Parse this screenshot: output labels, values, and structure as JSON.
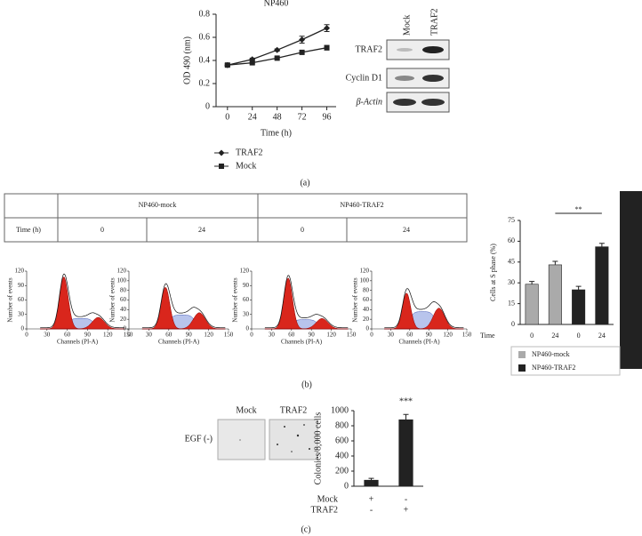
{
  "chart_data": [
    {
      "type": "line",
      "title": "NP460",
      "xlabel": "Time (h)",
      "ylabel": "OD 490 (nm)",
      "x": [
        0,
        24,
        48,
        72,
        96
      ],
      "xlim": [
        -11,
        105
      ],
      "xticks": [
        0,
        24,
        48,
        72,
        96
      ],
      "ylim": [
        0,
        0.8
      ],
      "yticks": [
        0,
        0.2,
        0.4,
        0.6,
        0.8
      ],
      "series": [
        {
          "name": "TRAF2",
          "color": "#222222",
          "marker": "diamond",
          "values": [
            0.36,
            0.41,
            0.49,
            0.58,
            0.68
          ],
          "errors": [
            0.01,
            0.01,
            0.01,
            0.03,
            0.03
          ]
        },
        {
          "name": "Mock",
          "color": "#222222",
          "marker": "square",
          "values": [
            0.36,
            0.38,
            0.42,
            0.47,
            0.51
          ],
          "errors": [
            0.01,
            0.01,
            0.01,
            0.01,
            0.02
          ]
        }
      ]
    },
    {
      "type": "bar",
      "ylabel": "Cells at S phase (%)",
      "x_title": "Time",
      "annotation": "**",
      "categories": [
        "0",
        "24",
        "0",
        "24"
      ],
      "ylim": [
        0,
        75
      ],
      "yticks": [
        0,
        15,
        30,
        45,
        60,
        75
      ],
      "series": [
        {
          "name": "NP460-mock",
          "color": "#aaaaaa",
          "values": [
            29,
            43,
            null,
            null
          ],
          "errors": [
            2,
            2.5,
            null,
            null
          ]
        },
        {
          "name": "NP460-TRAF2",
          "color": "#222222",
          "values": [
            null,
            null,
            25,
            56
          ],
          "errors": [
            null,
            null,
            2.5,
            2.5
          ]
        }
      ]
    },
    {
      "type": "bar",
      "ylabel": "Colonies/8,000 cells",
      "annotation": "***",
      "categories": [
        null,
        null
      ],
      "ylim": [
        0,
        1000
      ],
      "yticks": [
        0,
        200,
        400,
        600,
        800,
        1000
      ],
      "series": [
        {
          "color": "#222222",
          "values": [
            80,
            880
          ],
          "errors": [
            25,
            70
          ]
        }
      ],
      "condition_rows": [
        {
          "name": "Mock",
          "marks": [
            "+",
            "-"
          ]
        },
        {
          "name": "TRAF2",
          "marks": [
            "-",
            "+"
          ]
        }
      ]
    }
  ],
  "western_blot": {
    "lanes": [
      "Mock",
      "TRAF2"
    ],
    "rows": [
      "TRAF2",
      "Cyclin D1",
      "β-Actin"
    ]
  },
  "cell_cycle_table": {
    "groups": [
      "NP460-mock",
      "NP460-TRAF2"
    ],
    "row_label": "Time (h)",
    "times": [
      "0",
      "24",
      "0",
      "24"
    ]
  },
  "flow_plots": [
    {
      "xlabel": "Channels (PI-A)",
      "ylabel": "Number of events",
      "xticks": [
        0,
        30,
        60,
        90,
        120,
        150
      ],
      "yticks": [
        0,
        30,
        60,
        90,
        120
      ]
    },
    {
      "xlabel": "Channels (PI-A)",
      "ylabel": "Number of events",
      "xticks": [
        0,
        30,
        60,
        90,
        120,
        150
      ],
      "yticks": [
        0,
        20,
        40,
        60,
        80,
        100,
        120
      ]
    },
    {
      "xlabel": "Channels (PI-A)",
      "ylabel": "Number of events",
      "xticks": [
        0,
        30,
        60,
        90,
        120,
        150
      ],
      "yticks": [
        0,
        30,
        60,
        90,
        120
      ]
    },
    {
      "xlabel": "Channels (PI-A)",
      "ylabel": "Number of events",
      "xticks": [
        0,
        30,
        60,
        90,
        120,
        150
      ],
      "yticks": [
        0,
        20,
        40,
        60,
        80,
        100,
        120
      ]
    }
  ],
  "colony_images": {
    "labels": [
      "Mock",
      "TRAF2"
    ],
    "row_label": "EGF (-)"
  },
  "panel_labels": [
    "(a)",
    "(b)",
    "(c)"
  ]
}
